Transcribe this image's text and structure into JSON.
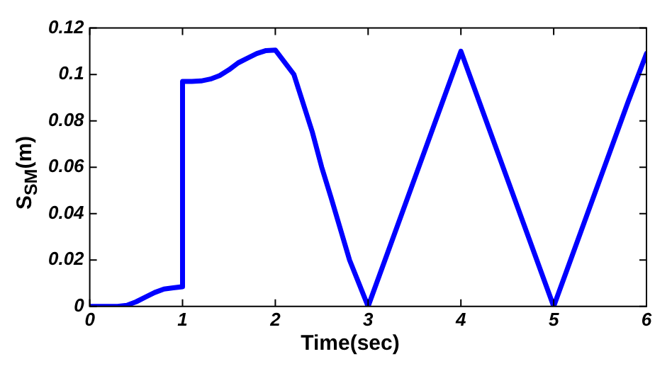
{
  "chart_data": {
    "type": "line",
    "xlabel": "Time(sec)",
    "ylabel": "S$_{SM}$(m)",
    "xlim": [
      0,
      6
    ],
    "ylim": [
      0,
      0.12
    ],
    "xticks": [
      0,
      1,
      2,
      3,
      4,
      5,
      6
    ],
    "yticks": [
      0,
      0.02,
      0.04,
      0.06,
      0.08,
      0.1,
      0.12
    ],
    "grid": false,
    "legend": false,
    "marker": "none",
    "line_style": "solid",
    "series": [
      {
        "color": "#0000ff",
        "x": [
          0,
          0.3,
          0.4,
          0.5,
          0.6,
          0.7,
          0.8,
          0.9,
          1,
          1,
          1.1,
          1.2,
          1.3,
          1.4,
          1.5,
          1.6,
          1.7,
          1.8,
          1.9,
          2,
          2.2,
          2.4,
          2.5,
          2.6,
          2.8,
          3,
          3.2,
          3.5,
          3.8,
          4,
          4.2,
          4.5,
          4.8,
          5,
          5.2,
          5.5,
          5.8,
          6
        ],
        "values": [
          0,
          0,
          0.0005,
          0.002,
          0.004,
          0.006,
          0.0075,
          0.008,
          0.0085,
          0.097,
          0.097,
          0.0972,
          0.098,
          0.0995,
          0.102,
          0.105,
          0.107,
          0.109,
          0.1103,
          0.1105,
          0.1,
          0.075,
          0.06,
          0.047,
          0.02,
          0,
          0.022,
          0.055,
          0.088,
          0.11,
          0.088,
          0.055,
          0.022,
          0,
          0.022,
          0.055,
          0.088,
          0.109
        ]
      }
    ]
  }
}
